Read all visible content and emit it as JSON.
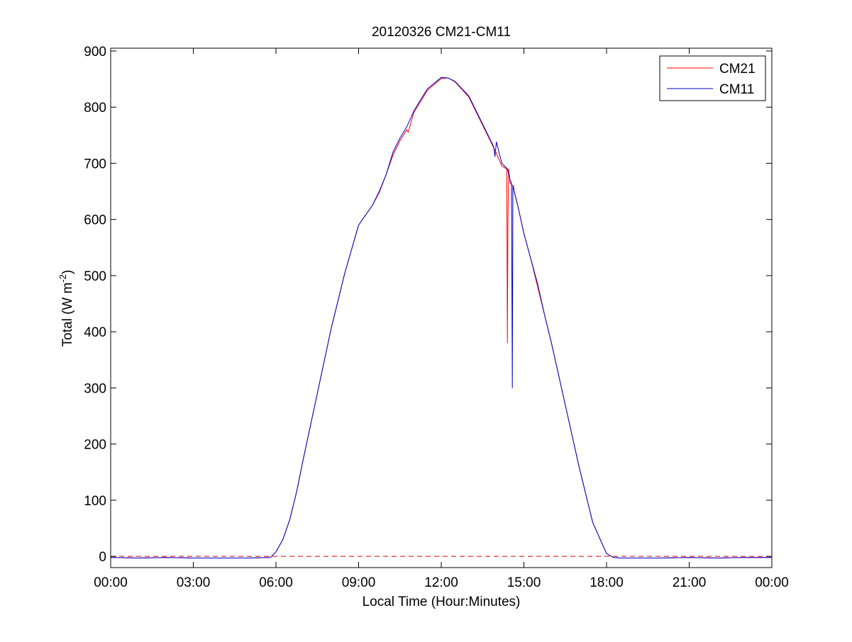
{
  "chart_data": {
    "type": "line",
    "title": "20120326 CM21-CM11",
    "xlabel": "Local Time (Hour:Minutes)",
    "ylabel": {
      "prefix": "Total (W m",
      "superscript": "-2",
      "suffix": ")"
    },
    "xlim": [
      0,
      24
    ],
    "ylim": [
      -20,
      905
    ],
    "xticks": [
      0,
      3,
      6,
      9,
      12,
      15,
      18,
      21,
      24
    ],
    "xtick_labels": [
      "00:00",
      "03:00",
      "06:00",
      "09:00",
      "12:00",
      "15:00",
      "18:00",
      "21:00",
      "00:00"
    ],
    "yticks": [
      0,
      100,
      200,
      300,
      400,
      500,
      600,
      700,
      800,
      900
    ],
    "ytick_labels": [
      "0",
      "100",
      "200",
      "300",
      "400",
      "500",
      "600",
      "700",
      "800",
      "900"
    ],
    "grid": false,
    "legend": "top-right",
    "reference_line": {
      "y": 0,
      "style": "dashed",
      "color": "#d00000"
    },
    "series": [
      {
        "name": "CM21",
        "color": "#ff0000",
        "x": [
          0,
          1,
          2,
          3,
          4,
          5,
          5.8,
          6,
          6.25,
          6.5,
          6.75,
          7,
          7.5,
          8,
          8.5,
          9,
          9.5,
          9.75,
          10,
          10.25,
          10.5,
          10.75,
          10.8,
          11,
          11.5,
          12,
          12.25,
          12.5,
          13,
          13.5,
          13.9,
          14,
          14.2,
          14.38,
          14.4,
          14.42,
          14.45,
          14.47,
          14.5,
          14.6,
          14.62,
          14.65,
          14.7,
          14.8,
          15,
          15.25,
          15.5,
          15.75,
          16,
          16.5,
          17,
          17.5,
          18,
          18.25,
          18.5,
          19,
          20,
          21,
          22,
          23,
          24
        ],
        "y": [
          -2,
          -3,
          -2,
          -3,
          -3,
          -3,
          -2,
          8,
          30,
          65,
          115,
          175,
          290,
          405,
          505,
          590,
          625,
          648,
          680,
          715,
          740,
          760,
          755,
          790,
          830,
          851,
          852,
          845,
          818,
          768,
          728,
          718,
          695,
          690,
          380,
          600,
          690,
          680,
          665,
          660,
          660,
          650,
          640,
          620,
          575,
          530,
          480,
          430,
          380,
          270,
          160,
          60,
          5,
          -2,
          -3,
          -3,
          -3,
          -2,
          -3,
          -2,
          -2
        ]
      },
      {
        "name": "CM11",
        "color": "#0000cc",
        "x": [
          0,
          1,
          2,
          3,
          4,
          5,
          5.8,
          6,
          6.25,
          6.5,
          6.75,
          7,
          7.5,
          8,
          8.5,
          9,
          9.5,
          9.75,
          10,
          10.25,
          10.5,
          10.75,
          11,
          11.5,
          12,
          12.25,
          12.5,
          13,
          13.5,
          13.9,
          13.95,
          14,
          14.2,
          14.4,
          14.5,
          14.55,
          14.58,
          14.6,
          14.65,
          14.7,
          14.8,
          15,
          15.25,
          15.5,
          15.75,
          16,
          16.5,
          17,
          17.5,
          18,
          18.25,
          18.5,
          19,
          20,
          21,
          22,
          23,
          24
        ],
        "y": [
          -2,
          -3,
          -2,
          -3,
          -3,
          -3,
          -2,
          8,
          30,
          65,
          115,
          175,
          290,
          405,
          505,
          590,
          625,
          650,
          680,
          720,
          745,
          765,
          793,
          833,
          853,
          852,
          846,
          820,
          770,
          730,
          712,
          738,
          700,
          690,
          670,
          665,
          300,
          660,
          650,
          640,
          620,
          575,
          530,
          485,
          430,
          380,
          270,
          160,
          60,
          5,
          -2,
          -3,
          -3,
          -3,
          -2,
          -3,
          -2,
          -2
        ]
      }
    ]
  }
}
